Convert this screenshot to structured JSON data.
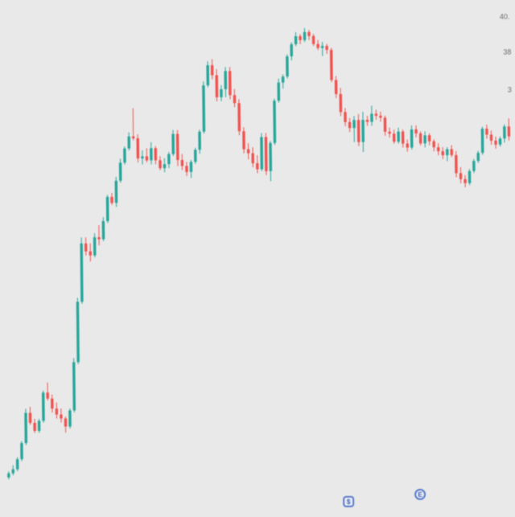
{
  "chart_data": {
    "type": "candlestick",
    "up_color": "#26a69a",
    "down_color": "#ef5350",
    "y_axis_labels": [
      "40.",
      "38",
      "3"
    ],
    "ohlc": [
      [
        18.6,
        18.9,
        18.5,
        18.8
      ],
      [
        18.8,
        19.2,
        18.7,
        19.0
      ],
      [
        19.0,
        19.6,
        18.9,
        19.5
      ],
      [
        19.5,
        20.4,
        19.4,
        20.3
      ],
      [
        20.3,
        22.0,
        20.2,
        21.8
      ],
      [
        21.8,
        22.1,
        21.2,
        21.3
      ],
      [
        21.3,
        21.5,
        20.8,
        20.9
      ],
      [
        20.9,
        21.5,
        20.8,
        21.4
      ],
      [
        21.4,
        22.9,
        21.3,
        22.8
      ],
      [
        22.8,
        23.3,
        22.4,
        22.5
      ],
      [
        22.5,
        22.7,
        21.8,
        22.0
      ],
      [
        22.0,
        22.3,
        21.5,
        21.7
      ],
      [
        21.7,
        22.0,
        21.3,
        21.5
      ],
      [
        21.5,
        21.6,
        20.8,
        21.1
      ],
      [
        21.1,
        22.0,
        21.0,
        21.9
      ],
      [
        21.9,
        24.5,
        21.8,
        24.3
      ],
      [
        24.3,
        27.5,
        24.2,
        27.3
      ],
      [
        27.3,
        30.5,
        27.2,
        30.2
      ],
      [
        30.2,
        30.5,
        29.6,
        29.8
      ],
      [
        29.8,
        30.2,
        29.3,
        29.6
      ],
      [
        29.6,
        30.7,
        29.5,
        30.5
      ],
      [
        30.5,
        31.1,
        30.1,
        30.4
      ],
      [
        30.4,
        31.5,
        30.3,
        31.3
      ],
      [
        31.3,
        32.6,
        31.2,
        32.5
      ],
      [
        32.5,
        32.7,
        32.1,
        32.2
      ],
      [
        32.2,
        33.5,
        32.0,
        33.3
      ],
      [
        33.3,
        34.4,
        33.2,
        34.2
      ],
      [
        34.2,
        35.0,
        34.1,
        34.9
      ],
      [
        34.9,
        35.7,
        34.8,
        35.5
      ],
      [
        35.5,
        36.9,
        35.3,
        35.4
      ],
      [
        35.4,
        35.6,
        34.2,
        34.4
      ],
      [
        34.4,
        34.8,
        34.1,
        34.5
      ],
      [
        34.5,
        34.9,
        34.2,
        34.3
      ],
      [
        34.3,
        35.2,
        34.1,
        34.9
      ],
      [
        34.9,
        35.0,
        34.1,
        34.3
      ],
      [
        34.3,
        34.5,
        33.8,
        33.9
      ],
      [
        33.9,
        34.4,
        33.7,
        34.1
      ],
      [
        34.1,
        34.7,
        33.9,
        34.6
      ],
      [
        34.6,
        35.8,
        34.5,
        35.6
      ],
      [
        35.6,
        35.8,
        34.0,
        34.3
      ],
      [
        34.3,
        34.6,
        33.8,
        34.0
      ],
      [
        34.0,
        34.2,
        33.5,
        33.7
      ],
      [
        33.7,
        34.3,
        33.4,
        34.2
      ],
      [
        34.2,
        34.9,
        34.1,
        34.8
      ],
      [
        34.8,
        35.8,
        34.6,
        35.7
      ],
      [
        35.7,
        38.2,
        35.6,
        38.0
      ],
      [
        38.0,
        39.2,
        37.9,
        39.0
      ],
      [
        39.0,
        39.3,
        38.3,
        38.5
      ],
      [
        38.5,
        38.8,
        37.2,
        37.4
      ],
      [
        37.4,
        38.0,
        37.2,
        37.8
      ],
      [
        37.8,
        38.9,
        37.4,
        38.7
      ],
      [
        38.7,
        38.9,
        37.3,
        37.5
      ],
      [
        37.5,
        37.8,
        36.9,
        37.1
      ],
      [
        37.1,
        37.3,
        35.5,
        35.7
      ],
      [
        35.7,
        35.9,
        34.6,
        34.8
      ],
      [
        34.8,
        35.1,
        34.3,
        34.6
      ],
      [
        34.6,
        34.9,
        33.9,
        34.1
      ],
      [
        34.1,
        34.5,
        33.6,
        33.8
      ],
      [
        33.8,
        35.6,
        33.7,
        35.4
      ],
      [
        35.4,
        35.6,
        33.5,
        33.7
      ],
      [
        33.7,
        35.2,
        33.2,
        35.1
      ],
      [
        35.1,
        37.3,
        35.0,
        37.2
      ],
      [
        37.2,
        38.3,
        37.1,
        38.1
      ],
      [
        38.1,
        38.5,
        37.8,
        38.4
      ],
      [
        38.4,
        39.5,
        38.3,
        39.4
      ],
      [
        39.4,
        40.1,
        39.2,
        40.0
      ],
      [
        40.0,
        40.6,
        39.9,
        40.4
      ],
      [
        40.4,
        40.5,
        40.0,
        40.2
      ],
      [
        40.2,
        40.8,
        40.1,
        40.6
      ],
      [
        40.6,
        40.7,
        40.2,
        40.4
      ],
      [
        40.4,
        40.5,
        39.9,
        40.0
      ],
      [
        40.0,
        40.2,
        39.7,
        39.8
      ],
      [
        39.8,
        40.1,
        39.4,
        39.9
      ],
      [
        39.9,
        40.0,
        39.5,
        39.7
      ],
      [
        39.7,
        39.8,
        38.1,
        38.2
      ],
      [
        38.2,
        38.4,
        37.3,
        37.5
      ],
      [
        37.5,
        37.8,
        36.4,
        36.6
      ],
      [
        36.6,
        36.8,
        35.9,
        36.1
      ],
      [
        36.1,
        36.3,
        35.6,
        35.8
      ],
      [
        35.8,
        36.4,
        35.1,
        36.2
      ],
      [
        36.2,
        36.5,
        34.9,
        35.1
      ],
      [
        35.1,
        36.6,
        34.6,
        36.2
      ],
      [
        36.2,
        36.4,
        35.9,
        36.1
      ],
      [
        36.1,
        36.9,
        35.9,
        36.5
      ],
      [
        36.5,
        36.7,
        36.2,
        36.4
      ],
      [
        36.4,
        36.6,
        36.1,
        36.3
      ],
      [
        36.3,
        36.4,
        35.4,
        35.6
      ],
      [
        35.6,
        35.8,
        35.3,
        35.5
      ],
      [
        35.5,
        35.7,
        35.0,
        35.1
      ],
      [
        35.1,
        35.8,
        35.0,
        35.6
      ],
      [
        35.6,
        35.7,
        34.8,
        35.0
      ],
      [
        35.0,
        35.2,
        34.6,
        34.8
      ],
      [
        34.8,
        35.9,
        34.7,
        35.7
      ],
      [
        35.7,
        35.9,
        35.3,
        35.5
      ],
      [
        35.5,
        35.6,
        34.9,
        35.0
      ],
      [
        35.0,
        35.6,
        34.8,
        35.4
      ],
      [
        35.4,
        35.5,
        34.9,
        35.1
      ],
      [
        35.1,
        35.2,
        34.6,
        34.8
      ],
      [
        34.8,
        35.0,
        34.4,
        34.6
      ],
      [
        34.6,
        34.8,
        34.2,
        34.4
      ],
      [
        34.4,
        34.8,
        34.1,
        34.7
      ],
      [
        34.7,
        34.9,
        34.3,
        34.4
      ],
      [
        34.4,
        34.6,
        33.3,
        33.5
      ],
      [
        33.5,
        33.8,
        33.0,
        33.2
      ],
      [
        33.2,
        33.4,
        32.8,
        33.0
      ],
      [
        33.0,
        33.7,
        32.9,
        33.6
      ],
      [
        33.6,
        34.2,
        33.5,
        34.1
      ],
      [
        34.1,
        34.6,
        34.0,
        34.5
      ],
      [
        34.5,
        35.8,
        34.4,
        35.7
      ],
      [
        35.7,
        35.9,
        35.2,
        35.4
      ],
      [
        35.4,
        35.6,
        34.9,
        35.1
      ],
      [
        35.1,
        35.3,
        34.7,
        34.9
      ],
      [
        34.9,
        35.3,
        34.8,
        35.2
      ],
      [
        35.2,
        35.9,
        35.0,
        35.8
      ],
      [
        35.8,
        36.2,
        35.1,
        35.3
      ]
    ]
  },
  "markers": {
    "dividend_glyph": "$",
    "earnings_glyph": "E"
  },
  "icons": {
    "dividend": "dividend-marker-icon",
    "earnings": "earnings-marker-icon"
  }
}
